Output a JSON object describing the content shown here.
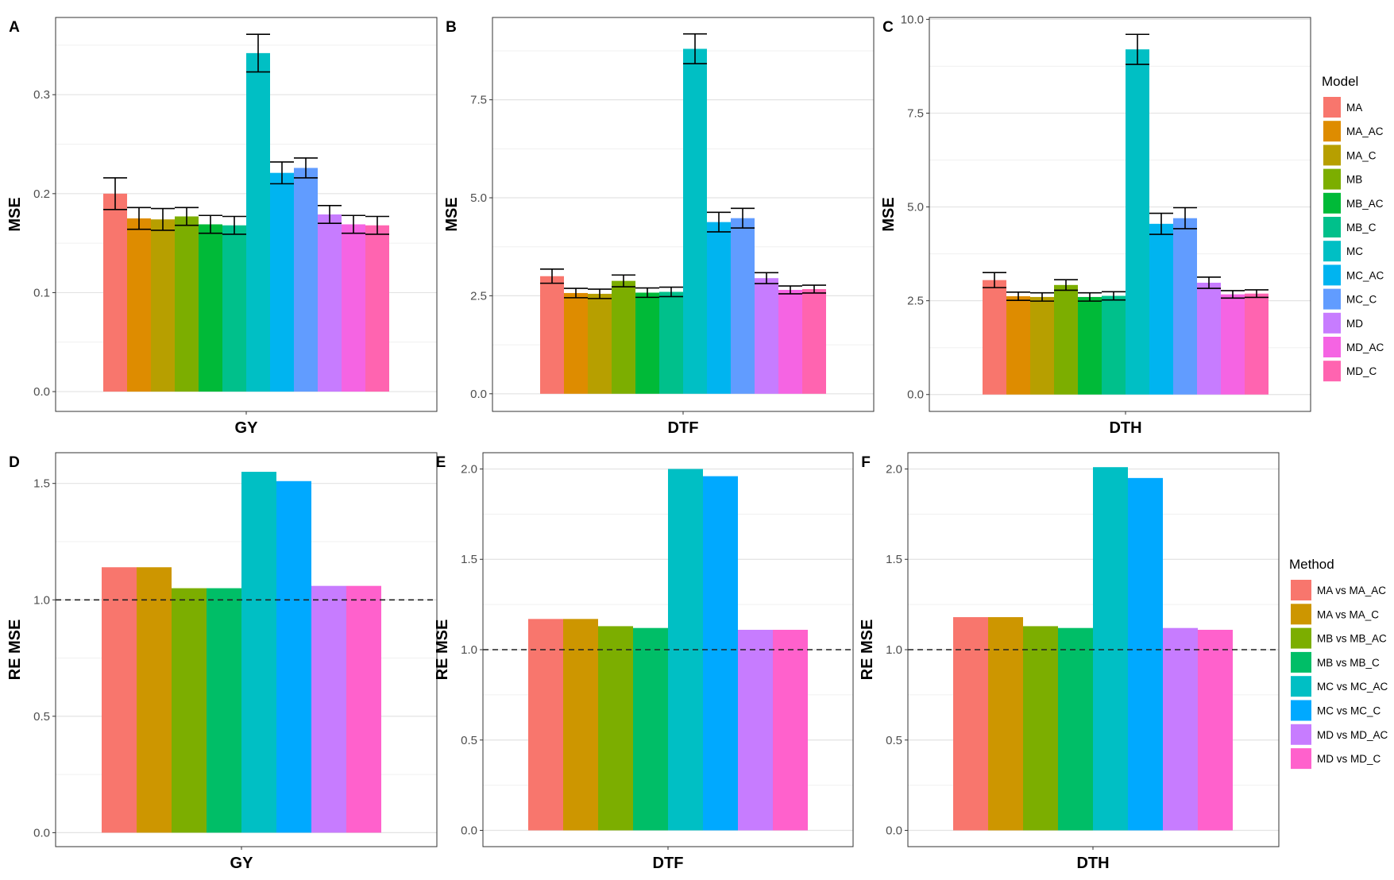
{
  "colors": {
    "MA": "#F8766D",
    "MA_AC": "#DE8C00",
    "MA_C": "#B79F00",
    "MB": "#7CAE00",
    "MB_AC": "#00BA38",
    "MB_C": "#00C08B",
    "MC": "#00BFC4",
    "MC_AC": "#00B4F0",
    "MC_C": "#619CFF",
    "MD": "#C77CFF",
    "MD_AC": "#F564E3",
    "MD_C": "#FF64B0",
    "MA vs MA_AC": "#F8766D",
    "MA vs MA_C": "#CD9600",
    "MB vs MB_AC": "#7CAE00",
    "MB vs MB_C": "#00BE67",
    "MC vs MC_AC": "#00BFC4",
    "MC vs MC_C": "#00A9FF",
    "MD vs MD_AC": "#C77CFF",
    "MD vs MD_C": "#FF61CC"
  },
  "legends": {
    "model": {
      "title": "Model",
      "items": [
        "MA",
        "MA_AC",
        "MA_C",
        "MB",
        "MB_AC",
        "MB_C",
        "MC",
        "MC_AC",
        "MC_C",
        "MD",
        "MD_AC",
        "MD_C"
      ]
    },
    "method": {
      "title": "Method",
      "items": [
        "MA vs MA_AC",
        "MA vs MA_C",
        "MB vs MB_AC",
        "MB vs MB_C",
        "MC vs MC_AC",
        "MC vs MC_C",
        "MD vs MD_AC",
        "MD vs MD_C"
      ]
    }
  },
  "chart_data": [
    {
      "panel": "A",
      "type": "bar",
      "xlabel": "GY",
      "ylabel": "MSE",
      "ylim": [
        -0.02,
        0.378
      ],
      "yticks": [
        0.0,
        0.1,
        0.2,
        0.3
      ],
      "ytick_labels": [
        "0.0",
        "0.1",
        "0.2",
        "0.3"
      ],
      "series_names": [
        "MA",
        "MA_AC",
        "MA_C",
        "MB",
        "MB_AC",
        "MB_C",
        "MC",
        "MC_AC",
        "MC_C",
        "MD",
        "MD_AC",
        "MD_C"
      ],
      "values": [
        0.2,
        0.175,
        0.174,
        0.177,
        0.169,
        0.168,
        0.342,
        0.221,
        0.226,
        0.179,
        0.169,
        0.168
      ],
      "errors": [
        0.016,
        0.011,
        0.011,
        0.009,
        0.009,
        0.009,
        0.019,
        0.011,
        0.01,
        0.009,
        0.009,
        0.009
      ]
    },
    {
      "panel": "B",
      "type": "bar",
      "xlabel": "DTF",
      "ylabel": "MSE",
      "ylim": [
        -0.45,
        9.6
      ],
      "yticks": [
        0.0,
        2.5,
        5.0,
        7.5
      ],
      "ytick_labels": [
        "0.0",
        "2.5",
        "5.0",
        "7.5"
      ],
      "series_names": [
        "MA",
        "MA_AC",
        "MA_C",
        "MB",
        "MB_AC",
        "MB_C",
        "MC",
        "MC_AC",
        "MC_C",
        "MD",
        "MD_AC",
        "MD_C"
      ],
      "values": [
        3.0,
        2.57,
        2.55,
        2.88,
        2.58,
        2.6,
        8.8,
        4.38,
        4.48,
        2.95,
        2.65,
        2.67
      ],
      "errors": [
        0.18,
        0.12,
        0.12,
        0.15,
        0.12,
        0.12,
        0.38,
        0.25,
        0.25,
        0.14,
        0.1,
        0.1
      ]
    },
    {
      "panel": "C",
      "type": "bar",
      "xlabel": "DTH",
      "ylabel": "MSE",
      "ylim": [
        -0.45,
        10.05
      ],
      "yticks": [
        0.0,
        2.5,
        5.0,
        7.5,
        10.0
      ],
      "ytick_labels": [
        "0.0",
        "2.5",
        "5.0",
        "7.5",
        "10.0"
      ],
      "series_names": [
        "MA",
        "MA_AC",
        "MA_C",
        "MB",
        "MB_AC",
        "MB_C",
        "MC",
        "MC_AC",
        "MC_C",
        "MD",
        "MD_AC",
        "MD_C"
      ],
      "values": [
        3.05,
        2.62,
        2.6,
        2.92,
        2.6,
        2.63,
        9.2,
        4.55,
        4.7,
        2.98,
        2.67,
        2.69
      ],
      "errors": [
        0.2,
        0.11,
        0.11,
        0.14,
        0.11,
        0.11,
        0.4,
        0.28,
        0.28,
        0.15,
        0.1,
        0.1
      ]
    },
    {
      "panel": "D",
      "type": "bar",
      "xlabel": "GY",
      "ylabel": "RE MSE",
      "ylim": [
        -0.06,
        1.632
      ],
      "yticks": [
        0.0,
        0.5,
        1.0,
        1.5
      ],
      "ytick_labels": [
        "0.0",
        "0.5",
        "1.0",
        "1.5"
      ],
      "series_names": [
        "MA vs MA_AC",
        "MA vs MA_C",
        "MB vs MB_AC",
        "MB vs MB_C",
        "MC vs MC_AC",
        "MC vs MC_C",
        "MD vs MD_AC",
        "MD vs MD_C"
      ],
      "values": [
        1.14,
        1.14,
        1.05,
        1.05,
        1.55,
        1.51,
        1.06,
        1.06
      ],
      "reference_line": 1.0
    },
    {
      "panel": "E",
      "type": "bar",
      "xlabel": "DTF",
      "ylabel": "RE MSE",
      "ylim": [
        -0.09,
        2.09
      ],
      "yticks": [
        0.0,
        0.5,
        1.0,
        1.5,
        2.0
      ],
      "ytick_labels": [
        "0.0",
        "0.5",
        "1.0",
        "1.5",
        "2.0"
      ],
      "series_names": [
        "MA vs MA_AC",
        "MA vs MA_C",
        "MB vs MB_AC",
        "MB vs MB_C",
        "MC vs MC_AC",
        "MC vs MC_C",
        "MD vs MD_AC",
        "MD vs MD_C"
      ],
      "values": [
        1.17,
        1.17,
        1.13,
        1.12,
        2.0,
        1.96,
        1.11,
        1.11
      ],
      "reference_line": 1.0
    },
    {
      "panel": "F",
      "type": "bar",
      "xlabel": "DTH",
      "ylabel": "RE MSE",
      "ylim": [
        -0.09,
        2.09
      ],
      "yticks": [
        0.0,
        0.5,
        1.0,
        1.5,
        2.0
      ],
      "ytick_labels": [
        "0.0",
        "0.5",
        "1.0",
        "1.5",
        "2.0"
      ],
      "series_names": [
        "MA vs MA_AC",
        "MA vs MA_C",
        "MB vs MB_AC",
        "MB vs MB_C",
        "MC vs MC_AC",
        "MC vs MC_C",
        "MD vs MD_AC",
        "MD vs MD_C"
      ],
      "values": [
        1.18,
        1.18,
        1.13,
        1.12,
        2.01,
        1.95,
        1.12,
        1.11
      ],
      "reference_line": 1.0
    }
  ]
}
